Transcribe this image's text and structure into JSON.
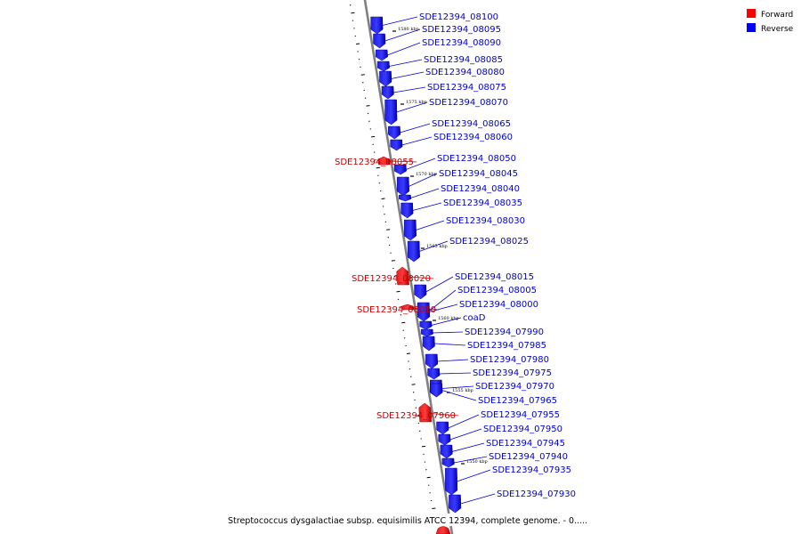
{
  "legend": {
    "forward_label": "Forward",
    "reverse_label": "Reverse",
    "forward_color": "#ff0000",
    "reverse_color": "#0000ff"
  },
  "caption": "Streptococcus dysgalactiae subsp. equisimilis ATCC 12394, complete genome. - 0.....",
  "colors": {
    "axis": "#808080",
    "forward_label": "#cc0000",
    "reverse_label": "#0000cc"
  },
  "chart_data": {
    "type": "genome-track",
    "kbp_ticks": [
      {
        "label": "1580 kbp"
      },
      {
        "label": "1575 kbp"
      },
      {
        "label": "1570 kbp"
      },
      {
        "label": "1565 kbp"
      },
      {
        "label": "1560 kbp"
      },
      {
        "label": "1555 kbp"
      },
      {
        "label": "1550 kbp"
      }
    ],
    "genes": [
      {
        "name": "SDE12394_08100",
        "strand": "reverse"
      },
      {
        "name": "SDE12394_08095",
        "strand": "reverse"
      },
      {
        "name": "SDE12394_08090",
        "strand": "reverse"
      },
      {
        "name": "SDE12394_08085",
        "strand": "reverse"
      },
      {
        "name": "SDE12394_08080",
        "strand": "reverse"
      },
      {
        "name": "SDE12394_08075",
        "strand": "reverse"
      },
      {
        "name": "SDE12394_08070",
        "strand": "reverse"
      },
      {
        "name": "SDE12394_08065",
        "strand": "reverse"
      },
      {
        "name": "SDE12394_08060",
        "strand": "reverse"
      },
      {
        "name": "SDE12394_08055",
        "strand": "forward"
      },
      {
        "name": "SDE12394_08050",
        "strand": "reverse"
      },
      {
        "name": "SDE12394_08045",
        "strand": "reverse"
      },
      {
        "name": "SDE12394_08040",
        "strand": "reverse"
      },
      {
        "name": "SDE12394_08035",
        "strand": "reverse"
      },
      {
        "name": "SDE12394_08030",
        "strand": "reverse"
      },
      {
        "name": "SDE12394_08025",
        "strand": "reverse"
      },
      {
        "name": "SDE12394_08020",
        "strand": "forward"
      },
      {
        "name": "SDE12394_08015",
        "strand": "reverse"
      },
      {
        "name": "SDE12394_08010",
        "strand": "forward"
      },
      {
        "name": "SDE12394_08005",
        "strand": "reverse"
      },
      {
        "name": "SDE12394_08000",
        "strand": "reverse"
      },
      {
        "name": "coaD",
        "strand": "reverse"
      },
      {
        "name": "SDE12394_07990",
        "strand": "reverse"
      },
      {
        "name": "SDE12394_07985",
        "strand": "reverse"
      },
      {
        "name": "SDE12394_07980",
        "strand": "reverse"
      },
      {
        "name": "SDE12394_07975",
        "strand": "reverse"
      },
      {
        "name": "SDE12394_07970",
        "strand": "reverse"
      },
      {
        "name": "SDE12394_07965",
        "strand": "reverse"
      },
      {
        "name": "SDE12394_07960",
        "strand": "forward"
      },
      {
        "name": "SDE12394_07955",
        "strand": "reverse"
      },
      {
        "name": "SDE12394_07950",
        "strand": "reverse"
      },
      {
        "name": "SDE12394_07945",
        "strand": "reverse"
      },
      {
        "name": "SDE12394_07940",
        "strand": "reverse"
      },
      {
        "name": "SDE12394_07935",
        "strand": "reverse"
      },
      {
        "name": "SDE12394_07930",
        "strand": "reverse"
      }
    ]
  }
}
